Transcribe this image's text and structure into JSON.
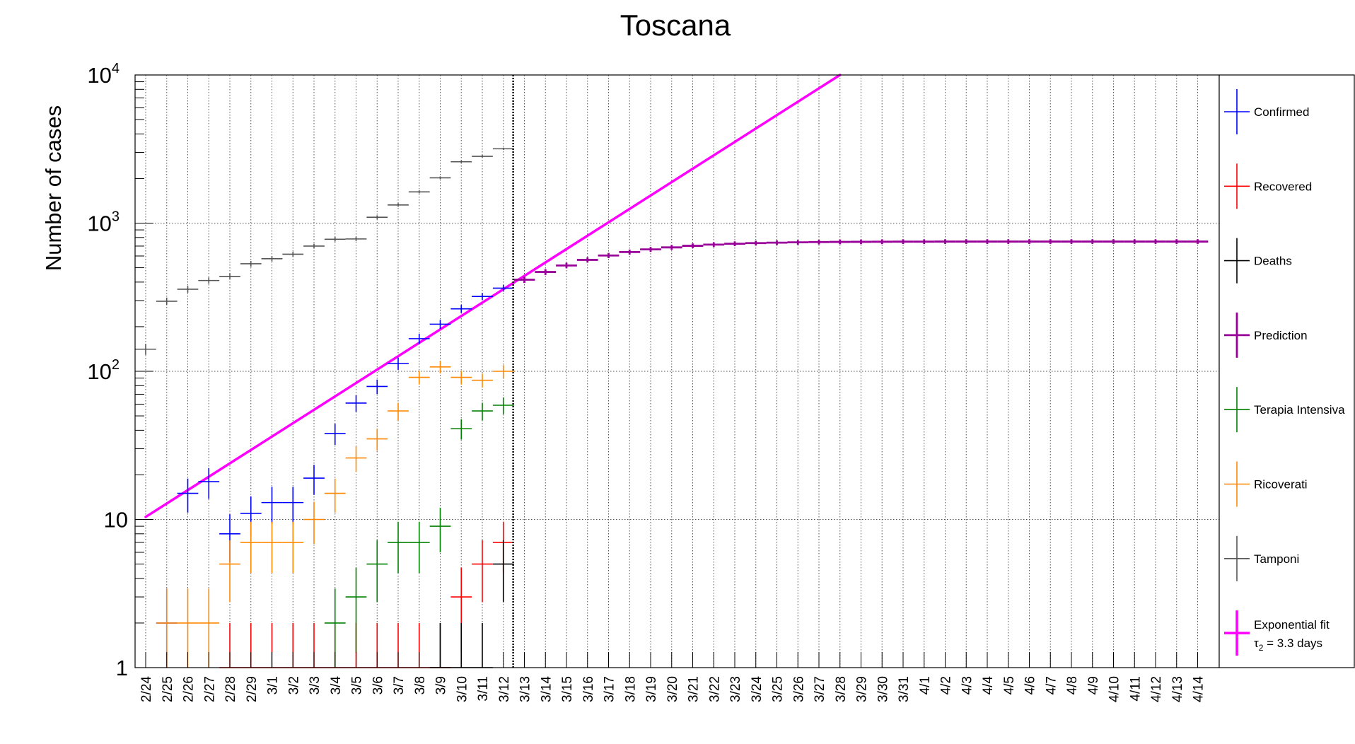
{
  "chart_data": {
    "type": "scatter",
    "title": "Toscana",
    "ylabel": "Number of cases",
    "xlabel": "",
    "y_scale": "log",
    "ylim": [
      1,
      10000
    ],
    "grid": true,
    "legend_position": "right",
    "categories": [
      "2/24",
      "2/25",
      "2/26",
      "2/27",
      "2/28",
      "2/29",
      "3/1",
      "3/2",
      "3/3",
      "3/4",
      "3/5",
      "3/6",
      "3/7",
      "3/8",
      "3/9",
      "3/10",
      "3/11",
      "3/12",
      "3/13",
      "3/14",
      "3/15",
      "3/16",
      "3/17",
      "3/18",
      "3/19",
      "3/20",
      "3/21",
      "3/22",
      "3/23",
      "3/24",
      "3/25",
      "3/26",
      "3/27",
      "3/28",
      "3/29",
      "3/30",
      "3/31",
      "4/1",
      "4/2",
      "4/3",
      "4/4",
      "4/5",
      "4/6",
      "4/7",
      "4/8",
      "4/9",
      "4/10",
      "4/11",
      "4/12",
      "4/13",
      "4/14"
    ],
    "y_ticks": [
      {
        "value": 1,
        "label": "1"
      },
      {
        "value": 10,
        "label": "10"
      },
      {
        "value": 100,
        "label": "10",
        "exponent": "2"
      },
      {
        "value": 1000,
        "label": "10",
        "exponent": "3"
      },
      {
        "value": 10000,
        "label": "10",
        "exponent": "4"
      }
    ],
    "series": [
      {
        "name": "Confirmed",
        "color": "#0000ff",
        "points": [
          {
            "x": "2/25",
            "y": 2
          },
          {
            "x": "2/26",
            "y": 15
          },
          {
            "x": "2/27",
            "y": 18
          },
          {
            "x": "2/28",
            "y": 8
          },
          {
            "x": "2/29",
            "y": 11
          },
          {
            "x": "3/1",
            "y": 13
          },
          {
            "x": "3/2",
            "y": 13
          },
          {
            "x": "3/3",
            "y": 19
          },
          {
            "x": "3/4",
            "y": 38
          },
          {
            "x": "3/5",
            "y": 61
          },
          {
            "x": "3/6",
            "y": 79
          },
          {
            "x": "3/7",
            "y": 113
          },
          {
            "x": "3/8",
            "y": 166
          },
          {
            "x": "3/9",
            "y": 208
          },
          {
            "x": "3/10",
            "y": 264
          },
          {
            "x": "3/11",
            "y": 320
          },
          {
            "x": "3/12",
            "y": 364
          }
        ]
      },
      {
        "name": "Recovered",
        "color": "#ff0000",
        "points": [
          {
            "x": "2/28",
            "y": 1
          },
          {
            "x": "2/29",
            "y": 1
          },
          {
            "x": "3/1",
            "y": 1
          },
          {
            "x": "3/2",
            "y": 1
          },
          {
            "x": "3/3",
            "y": 1
          },
          {
            "x": "3/4",
            "y": 1
          },
          {
            "x": "3/5",
            "y": 1
          },
          {
            "x": "3/6",
            "y": 1
          },
          {
            "x": "3/7",
            "y": 1
          },
          {
            "x": "3/8",
            "y": 1
          },
          {
            "x": "3/9",
            "y": 1
          },
          {
            "x": "3/10",
            "y": 3
          },
          {
            "x": "3/11",
            "y": 5
          },
          {
            "x": "3/12",
            "y": 7
          }
        ]
      },
      {
        "name": "Deaths",
        "color": "#000000",
        "points": [
          {
            "x": "3/9",
            "y": 1
          },
          {
            "x": "3/10",
            "y": 1
          },
          {
            "x": "3/11",
            "y": 1
          },
          {
            "x": "3/12",
            "y": 5
          }
        ]
      },
      {
        "name": "Prediction",
        "color": "#990099",
        "points": [
          {
            "x": "3/13",
            "y": 415
          },
          {
            "x": "3/14",
            "y": 468
          },
          {
            "x": "3/15",
            "y": 518
          },
          {
            "x": "3/16",
            "y": 565
          },
          {
            "x": "3/17",
            "y": 605
          },
          {
            "x": "3/18",
            "y": 638
          },
          {
            "x": "3/19",
            "y": 665
          },
          {
            "x": "3/20",
            "y": 686
          },
          {
            "x": "3/21",
            "y": 703
          },
          {
            "x": "3/22",
            "y": 716
          },
          {
            "x": "3/23",
            "y": 726
          },
          {
            "x": "3/24",
            "y": 733
          },
          {
            "x": "3/25",
            "y": 738
          },
          {
            "x": "3/26",
            "y": 742
          },
          {
            "x": "3/27",
            "y": 745
          },
          {
            "x": "3/28",
            "y": 747
          },
          {
            "x": "3/29",
            "y": 748
          },
          {
            "x": "3/30",
            "y": 749
          },
          {
            "x": "3/31",
            "y": 750
          },
          {
            "x": "4/1",
            "y": 750
          },
          {
            "x": "4/2",
            "y": 751
          },
          {
            "x": "4/3",
            "y": 751
          },
          {
            "x": "4/4",
            "y": 751
          },
          {
            "x": "4/5",
            "y": 751
          },
          {
            "x": "4/6",
            "y": 751
          },
          {
            "x": "4/7",
            "y": 751
          },
          {
            "x": "4/8",
            "y": 751
          },
          {
            "x": "4/9",
            "y": 751
          },
          {
            "x": "4/10",
            "y": 751
          },
          {
            "x": "4/11",
            "y": 751
          },
          {
            "x": "4/12",
            "y": 751
          },
          {
            "x": "4/13",
            "y": 751
          },
          {
            "x": "4/14",
            "y": 751
          }
        ]
      },
      {
        "name": "Terapia Intensiva",
        "color": "#008000",
        "points": [
          {
            "x": "3/4",
            "y": 2
          },
          {
            "x": "3/5",
            "y": 3
          },
          {
            "x": "3/6",
            "y": 5
          },
          {
            "x": "3/7",
            "y": 7
          },
          {
            "x": "3/8",
            "y": 7
          },
          {
            "x": "3/9",
            "y": 9
          },
          {
            "x": "3/10",
            "y": 41
          },
          {
            "x": "3/11",
            "y": 54
          },
          {
            "x": "3/12",
            "y": 59
          }
        ]
      },
      {
        "name": "Ricoverati",
        "color": "#ff8800",
        "points": [
          {
            "x": "2/25",
            "y": 2
          },
          {
            "x": "2/26",
            "y": 2
          },
          {
            "x": "2/27",
            "y": 2
          },
          {
            "x": "2/28",
            "y": 5
          },
          {
            "x": "2/29",
            "y": 7
          },
          {
            "x": "3/1",
            "y": 7
          },
          {
            "x": "3/2",
            "y": 7
          },
          {
            "x": "3/3",
            "y": 10
          },
          {
            "x": "3/4",
            "y": 15
          },
          {
            "x": "3/5",
            "y": 26
          },
          {
            "x": "3/6",
            "y": 35
          },
          {
            "x": "3/7",
            "y": 54
          },
          {
            "x": "3/8",
            "y": 91
          },
          {
            "x": "3/9",
            "y": 107
          },
          {
            "x": "3/10",
            "y": 91
          },
          {
            "x": "3/11",
            "y": 87
          },
          {
            "x": "3/12",
            "y": 100
          }
        ]
      },
      {
        "name": "Tamponi",
        "color": "#555555",
        "points": [
          {
            "x": "2/24",
            "y": 141
          },
          {
            "x": "2/25",
            "y": 297
          },
          {
            "x": "2/26",
            "y": 358
          },
          {
            "x": "2/27",
            "y": 410
          },
          {
            "x": "2/28",
            "y": 437
          },
          {
            "x": "2/29",
            "y": 532
          },
          {
            "x": "3/1",
            "y": 575
          },
          {
            "x": "3/2",
            "y": 617
          },
          {
            "x": "3/3",
            "y": 700
          },
          {
            "x": "3/4",
            "y": 778
          },
          {
            "x": "3/5",
            "y": 782
          },
          {
            "x": "3/6",
            "y": 1096
          },
          {
            "x": "3/7",
            "y": 1326
          },
          {
            "x": "3/8",
            "y": 1626
          },
          {
            "x": "3/9",
            "y": 2023
          },
          {
            "x": "3/10",
            "y": 2595
          },
          {
            "x": "3/11",
            "y": 2824
          },
          {
            "x": "3/12",
            "y": 3175
          }
        ]
      }
    ],
    "fit": {
      "name": "Exponential fit",
      "label_line2": "= 3.3 days",
      "label_symbol": "τ",
      "label_subscript": "2",
      "color": "#ff00ff",
      "from": {
        "x": "2/24",
        "y": 10.4
      },
      "to": {
        "x": "3/28",
        "y": 10000
      }
    },
    "marker_line": {
      "x": "3/12",
      "style": "dotted"
    }
  }
}
